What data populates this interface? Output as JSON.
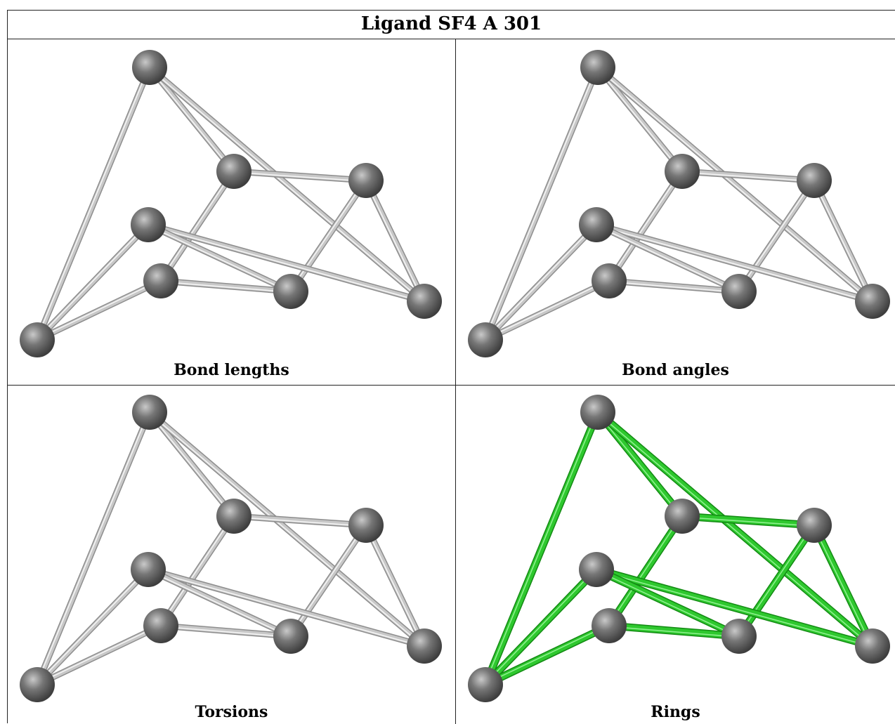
{
  "title": "Ligand SF4 A 301",
  "panels": [
    {
      "caption": "Bond lengths",
      "bond_color": "grey"
    },
    {
      "caption": "Bond angles",
      "bond_color": "grey"
    },
    {
      "caption": "Torsions",
      "bond_color": "grey"
    },
    {
      "caption": "Rings",
      "bond_color": "green"
    }
  ],
  "atoms": [
    "A1",
    "A2",
    "A3",
    "A4",
    "A5",
    "A6",
    "A7",
    "A8"
  ],
  "bonds": [
    [
      "A1",
      "A8"
    ],
    [
      "A1",
      "A2"
    ],
    [
      "A1",
      "A7"
    ],
    [
      "A2",
      "A3"
    ],
    [
      "A2",
      "A5"
    ],
    [
      "A3",
      "A7"
    ],
    [
      "A3",
      "A6"
    ],
    [
      "A4",
      "A8"
    ],
    [
      "A4",
      "A7"
    ],
    [
      "A4",
      "A6"
    ],
    [
      "A5",
      "A8"
    ],
    [
      "A5",
      "A6"
    ]
  ],
  "colors": {
    "grey_bond": "#c8c8c8",
    "green_bond": "#2ec82e",
    "atom": "#767676"
  }
}
